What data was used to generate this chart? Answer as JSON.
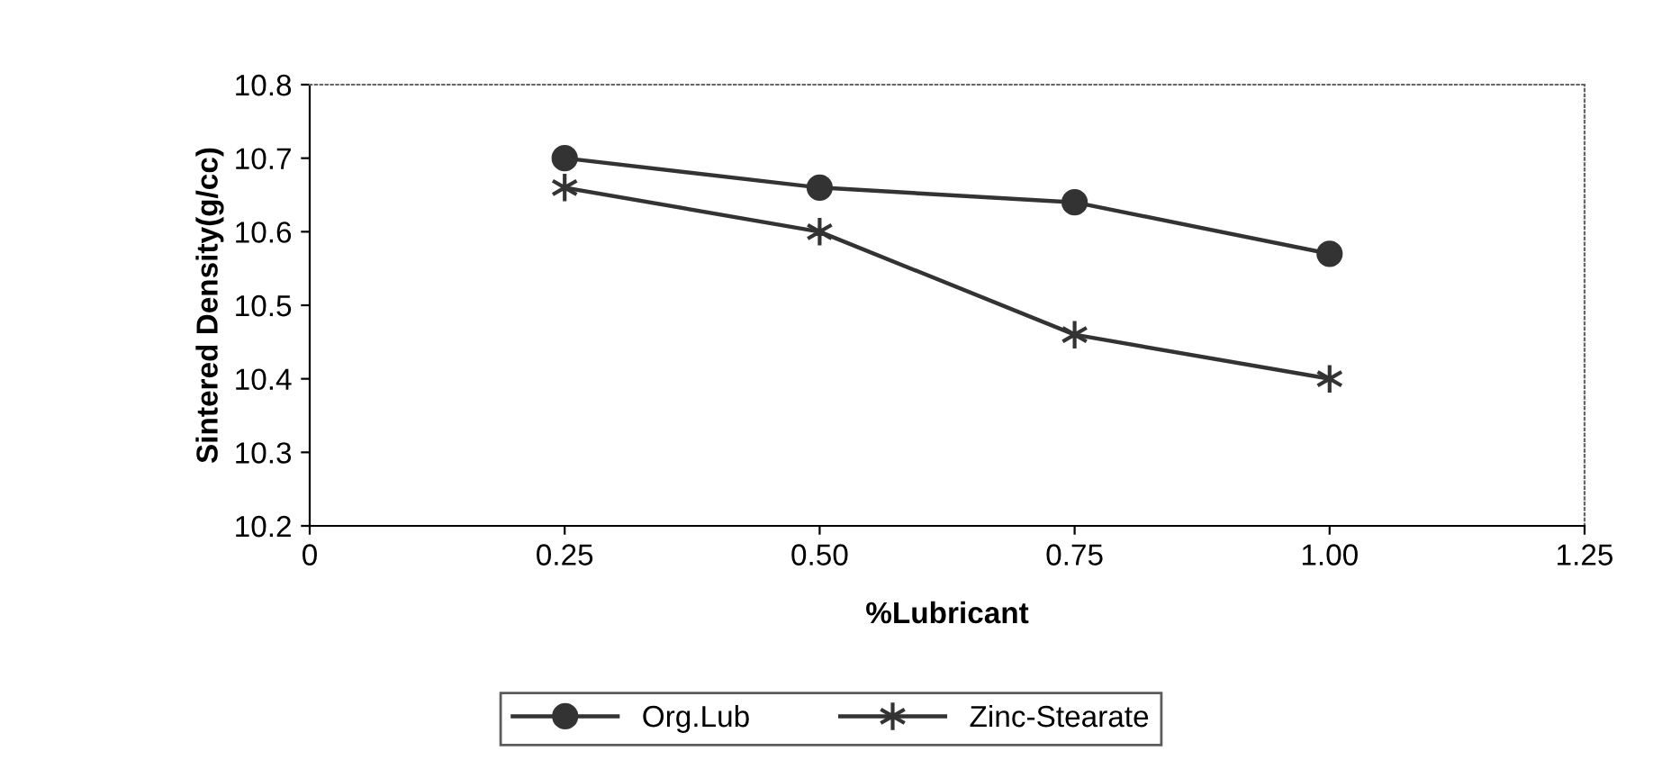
{
  "chart_data": {
    "type": "line",
    "xlabel": "%Lubricant",
    "ylabel": "Sintered Density(g/cc)",
    "x": [
      0.25,
      0.5,
      0.75,
      1.0
    ],
    "series": [
      {
        "name": "Org.Lub",
        "color": "#333333",
        "marker": "circle",
        "values": [
          10.7,
          10.66,
          10.64,
          10.57
        ]
      },
      {
        "name": "Zinc-Stearate",
        "color": "#333333",
        "marker": "cross",
        "values": [
          10.66,
          10.6,
          10.46,
          10.4
        ]
      }
    ],
    "xlim": [
      0,
      1.25
    ],
    "xticks": [
      0,
      {
        "value": 0.25,
        "label": "0.25"
      },
      {
        "value": 0.5,
        "label": "0.50"
      },
      {
        "value": 0.75,
        "label": "0.75"
      },
      {
        "value": 1.0,
        "label": "1.00"
      },
      {
        "value": 1.25,
        "label": "1.25"
      }
    ],
    "ylim": [
      10.2,
      10.8
    ],
    "yticks": [
      10.2,
      10.3,
      10.4,
      10.5,
      10.6,
      10.7,
      10.8
    ],
    "grid": false,
    "legend": "bottom",
    "line_style": "solid"
  }
}
